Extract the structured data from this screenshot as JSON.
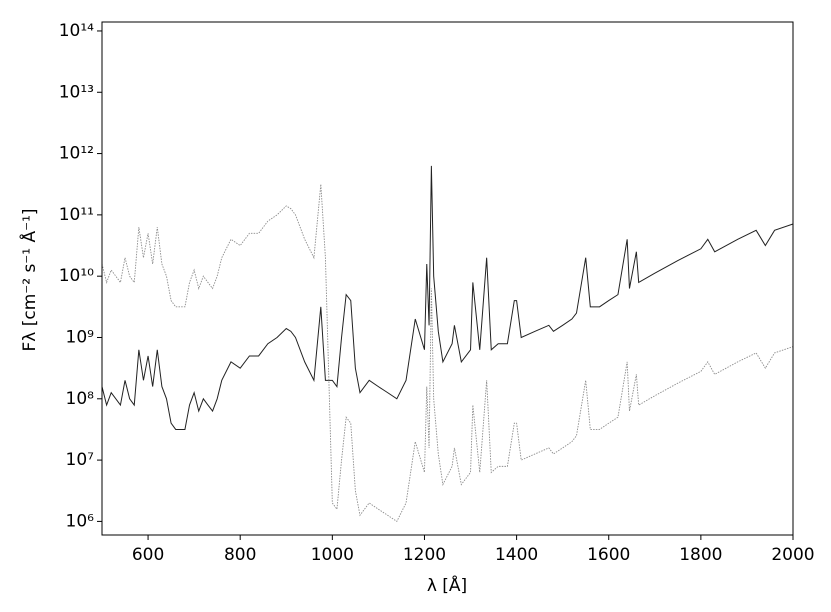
{
  "chart_data": {
    "type": "line",
    "xlabel": "λ [Å]",
    "ylabel": "Fλ [cm⁻² s⁻¹ Å⁻¹]",
    "x": [
      500,
      510,
      520,
      530,
      540,
      550,
      560,
      570,
      580,
      590,
      600,
      610,
      620,
      630,
      640,
      650,
      660,
      680,
      690,
      700,
      710,
      720,
      730,
      740,
      750,
      760,
      780,
      800,
      820,
      840,
      860,
      880,
      900,
      910,
      920,
      940,
      960,
      975,
      985,
      1000,
      1010,
      1020,
      1030,
      1040,
      1050,
      1060,
      1080,
      1100,
      1120,
      1140,
      1160,
      1180,
      1200,
      1205,
      1210,
      1215,
      1220,
      1230,
      1240,
      1260,
      1265,
      1280,
      1300,
      1305,
      1320,
      1335,
      1345,
      1360,
      1380,
      1395,
      1400,
      1410,
      1440,
      1470,
      1480,
      1500,
      1520,
      1530,
      1550,
      1560,
      1580,
      1600,
      1620,
      1640,
      1645,
      1660,
      1665,
      1700,
      1750,
      1800,
      1815,
      1830,
      1880,
      1920,
      1940,
      1960,
      2000
    ],
    "series": [
      {
        "color": "#222222",
        "linestyle": "solid",
        "values": [
          158000000.0,
          79000000.0,
          126000000.0,
          100000000.0,
          79000000.0,
          200000000.0,
          100000000.0,
          79000000.0,
          630000000.0,
          200000000.0,
          500000000.0,
          158000000.0,
          630000000.0,
          158000000.0,
          100000000.0,
          40000000.0,
          31600000.0,
          31600000.0,
          79000000.0,
          126000000.0,
          63000000.0,
          100000000.0,
          79000000.0,
          63000000.0,
          100000000.0,
          200000000.0,
          400000000.0,
          316000000.0,
          500000000.0,
          500000000.0,
          790000000.0,
          1000000000.0,
          1400000000.0,
          1260000000.0,
          1000000000.0,
          400000000.0,
          200000000.0,
          3160000000.0,
          200000000.0,
          200000000.0,
          158000000.0,
          1000000000.0,
          5000000000.0,
          4000000000.0,
          316000000.0,
          126000000.0,
          200000000.0,
          158000000.0,
          126000000.0,
          100000000.0,
          200000000.0,
          2000000000.0,
          630000000.0,
          15800000000.0,
          1580000000.0,
          630000000000.0,
          10000000000.0,
          1260000000.0,
          400000000.0,
          790000000.0,
          1580000000.0,
          400000000.0,
          630000000.0,
          7900000000.0,
          630000000.0,
          20000000000.0,
          630000000.0,
          790000000.0,
          790000000.0,
          4000000000.0,
          4000000000.0,
          1000000000.0,
          1260000000.0,
          1580000000.0,
          1260000000.0,
          1580000000.0,
          2000000000.0,
          2500000000.0,
          20000000000.0,
          3160000000.0,
          3160000000.0,
          4000000000.0,
          5000000000.0,
          40000000000.0,
          6300000000.0,
          25000000000.0,
          7900000000.0,
          11200000000.0,
          18000000000.0,
          28000000000.0,
          40000000000.0,
          25000000000.0,
          40000000000.0,
          56000000000.0,
          31600000000.0,
          56000000000.0,
          71000000000.0
        ]
      },
      {
        "color": "#8c8c8c",
        "linestyle": "dotted",
        "values": [
          15800000000.0,
          7900000000.0,
          12600000000.0,
          10000000000.0,
          7900000000.0,
          20000000000.0,
          10000000000.0,
          7900000000.0,
          63000000000.0,
          20000000000.0,
          50000000000.0,
          15800000000.0,
          63000000000.0,
          15800000000.0,
          10000000000.0,
          4000000000.0,
          3160000000.0,
          3160000000.0,
          7900000000.0,
          12600000000.0,
          6300000000.0,
          10000000000.0,
          7900000000.0,
          6300000000.0,
          10000000000.0,
          20000000000.0,
          40000000000.0,
          31600000000.0,
          50000000000.0,
          50000000000.0,
          79000000000.0,
          100000000000.0,
          140000000000.0,
          126000000000.0,
          100000000000.0,
          40000000000.0,
          20000000000.0,
          316000000000.0,
          20000000000.0,
          2000000.0,
          1580000.0,
          10000000.0,
          50000000.0,
          40000000.0,
          3160000.0,
          1260000.0,
          2000000.0,
          1580000.0,
          1260000.0,
          1000000.0,
          2000000.0,
          20000000.0,
          6300000.0,
          158000000.0,
          15800000.0,
          6300000000.0,
          100000000.0,
          12600000.0,
          4000000.0,
          7900000.0,
          15800000.0,
          4000000.0,
          6300000.0,
          79000000.0,
          6300000.0,
          200000000.0,
          6300000.0,
          7900000.0,
          7900000.0,
          40000000.0,
          40000000.0,
          10000000.0,
          12600000.0,
          15800000.0,
          12600000.0,
          15800000.0,
          20000000.0,
          25000000.0,
          200000000.0,
          31600000.0,
          31600000.0,
          40000000.0,
          50000000.0,
          400000000.0,
          63000000.0,
          250000000.0,
          79000000.0,
          112000000.0,
          180000000.0,
          280000000.0,
          400000000.0,
          250000000.0,
          400000000.0,
          560000000.0,
          316000000.0,
          560000000.0,
          710000000.0
        ]
      }
    ],
    "xlim": [
      500,
      2000
    ],
    "xticks": [
      600,
      800,
      1000,
      1200,
      1400,
      1600,
      1800,
      2000
    ],
    "ylim": [
      600000.0,
      140000000000000.0
    ],
    "yscale": "log",
    "yticks": [
      {
        "value": 1000000.0,
        "label": "10⁶"
      },
      {
        "value": 10000000.0,
        "label": "10⁷"
      },
      {
        "value": 100000000.0,
        "label": "10⁸"
      },
      {
        "value": 1000000000.0,
        "label": "10⁹"
      },
      {
        "value": 10000000000.0,
        "label": "10¹⁰"
      },
      {
        "value": 100000000000.0,
        "label": "10¹¹"
      },
      {
        "value": 1000000000000.0,
        "label": "10¹²"
      },
      {
        "value": 10000000000000.0,
        "label": "10¹³"
      },
      {
        "value": 100000000000000.0,
        "label": "10¹⁴"
      }
    ]
  }
}
